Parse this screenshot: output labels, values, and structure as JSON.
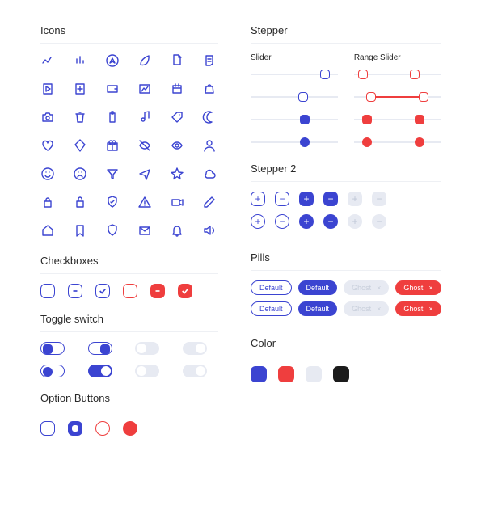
{
  "colors": {
    "primary": "#3b44d1",
    "danger": "#ef3e3e",
    "muted": "#e7eaf2",
    "dark": "#1b1b1b",
    "text": "#2a2a2a",
    "border": "#eef0f4"
  },
  "sections": {
    "icons": "Icons",
    "checkboxes": "Checkboxes",
    "toggle": "Toggle switch",
    "options": "Option Buttons",
    "stepper": "Stepper",
    "slider": "Slider",
    "range": "Range Slider",
    "stepper2": "Stepper 2",
    "pills": "Pills",
    "color": "Color"
  },
  "icons": [
    "chart-line",
    "bar-chart",
    "compass",
    "leaf",
    "document",
    "note",
    "play",
    "plus-square",
    "wallet",
    "image",
    "calendar",
    "bag",
    "camera",
    "trash",
    "clipboard",
    "music",
    "tag",
    "moon",
    "heart",
    "diamond",
    "gift",
    "eye-off",
    "eye",
    "user",
    "smile",
    "sad",
    "funnel",
    "plane",
    "star",
    "cloud",
    "lock",
    "unlock",
    "shield-check",
    "alert",
    "video",
    "edit",
    "home",
    "bookmark",
    "shield",
    "mail",
    "bell",
    "volume"
  ],
  "checkboxes": [
    {
      "style": "outline",
      "checked": false,
      "color": "primary"
    },
    {
      "style": "outline",
      "checked": false,
      "minus": true,
      "color": "primary"
    },
    {
      "style": "outline",
      "checked": true,
      "color": "primary"
    },
    {
      "style": "outline",
      "checked": false,
      "color": "danger"
    },
    {
      "style": "fill",
      "checked": false,
      "minus": true,
      "color": "danger"
    },
    {
      "style": "fill",
      "checked": true,
      "color": "danger"
    }
  ],
  "toggles": [
    [
      {
        "variant": "outline-blue",
        "on": true
      },
      {
        "variant": "outline-blue",
        "on": false
      },
      {
        "variant": "grey",
        "on": true
      },
      {
        "variant": "grey",
        "on": false
      }
    ],
    [
      {
        "variant": "outline-blue",
        "on": true,
        "round": true
      },
      {
        "variant": "fill-blue",
        "on": false
      },
      {
        "variant": "grey",
        "on": true
      },
      {
        "variant": "grey",
        "on": false
      }
    ]
  ],
  "options": [
    {
      "outline": "primary",
      "fill": null
    },
    {
      "outline": null,
      "fill": "primary",
      "bg": "primary-fill"
    },
    {
      "outline": "danger",
      "fill": null
    },
    {
      "outline": null,
      "fill": "danger",
      "bg": "danger-fill"
    }
  ],
  "sliders": [
    {
      "thumb": "outline",
      "color": "primary",
      "value": 85
    },
    {
      "thumb": "outline",
      "color": "primary",
      "value": 60
    },
    {
      "thumb": "fill",
      "color": "primary",
      "value": 62
    },
    {
      "thumb": "fill",
      "color": "primary",
      "value": 62,
      "round": true
    }
  ],
  "ranges": [
    {
      "thumb": "outline",
      "color": "danger",
      "lo": 10,
      "hi": 70
    },
    {
      "thumb": "outline",
      "color": "danger",
      "lo": 20,
      "hi": 80,
      "track": true
    },
    {
      "thumb": "fill",
      "color": "danger",
      "lo": 15,
      "hi": 75
    },
    {
      "thumb": "fill",
      "color": "danger",
      "lo": 15,
      "hi": 75,
      "round": true
    }
  ],
  "stepper2": [
    [
      {
        "s": "o",
        "g": "+"
      },
      {
        "s": "o",
        "g": "-"
      },
      {
        "s": "f",
        "g": "+"
      },
      {
        "s": "f",
        "g": "-"
      },
      {
        "s": "m",
        "g": "+"
      },
      {
        "s": "m",
        "g": "-"
      }
    ],
    [
      {
        "s": "o",
        "g": "+",
        "r": 1
      },
      {
        "s": "o",
        "g": "-",
        "r": 1
      },
      {
        "s": "f",
        "g": "+",
        "r": 1
      },
      {
        "s": "f",
        "g": "-",
        "r": 1
      },
      {
        "s": "m",
        "g": "+",
        "r": 1
      },
      {
        "s": "m",
        "g": "-",
        "r": 1
      }
    ]
  ],
  "pills": [
    [
      {
        "t": "Default",
        "v": "ob"
      },
      {
        "t": "Default",
        "v": "fb"
      },
      {
        "t": "Ghost",
        "v": "m",
        "x": 1
      },
      {
        "t": "Ghost",
        "v": "r",
        "x": 1
      }
    ],
    [
      {
        "t": "Default",
        "v": "ob",
        "r": 1
      },
      {
        "t": "Default",
        "v": "fb",
        "r": 1
      },
      {
        "t": "Ghost",
        "v": "m",
        "x": 1,
        "r": 1
      },
      {
        "t": "Ghost",
        "v": "r",
        "x": 1,
        "r": 1
      }
    ]
  ],
  "swatches": [
    "primary",
    "danger",
    "muted",
    "dark"
  ]
}
